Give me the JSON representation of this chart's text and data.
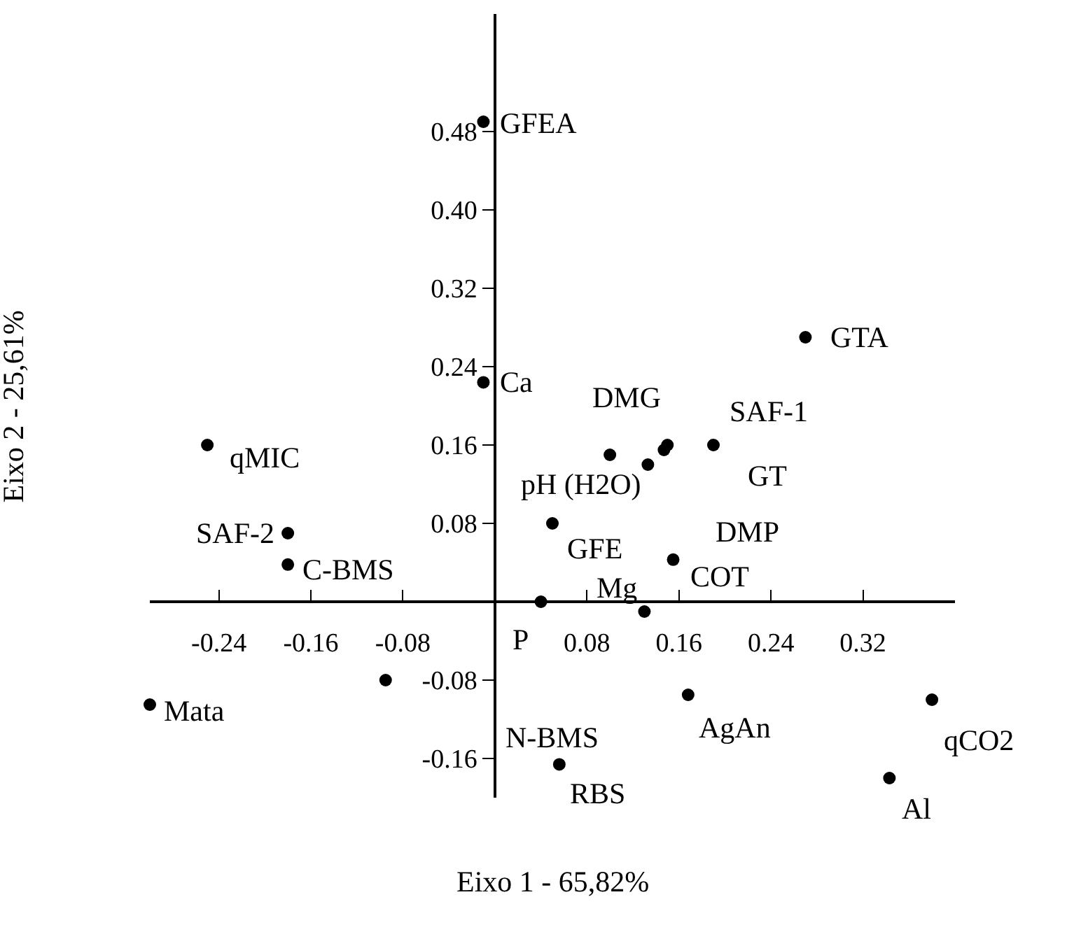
{
  "chart_data": {
    "type": "scatter",
    "xlabel": "Eixo 1 - 65,82%",
    "ylabel": "Eixo 2 - 25,61%",
    "x": [
      -0.01,
      -0.01,
      -0.25,
      0.27,
      0.19,
      0.15,
      0.147,
      0.1,
      0.133,
      0.05,
      0.155,
      0.04,
      0.13,
      -0.18,
      -0.18,
      -0.095,
      -0.3,
      0.056,
      0.168,
      0.38,
      0.343
    ],
    "series": [
      {
        "color": "#000000",
        "values": [
          0.49,
          0.224,
          0.16,
          0.27,
          0.16,
          0.16,
          0.155,
          0.15,
          0.14,
          0.08,
          0.043,
          0.0,
          -0.01,
          0.07,
          0.038,
          -0.08,
          -0.105,
          -0.166,
          -0.095,
          -0.1,
          -0.18
        ]
      }
    ],
    "marker": "circle",
    "grid": false,
    "xlim": [
      -0.3,
      0.4
    ],
    "ylim": [
      -0.2,
      0.6
    ],
    "xticks": [
      -0.24,
      -0.16,
      -0.08,
      0.08,
      0.16,
      0.24,
      0.32
    ],
    "yticks": [
      -0.16,
      -0.08,
      0.08,
      0.16,
      0.24,
      0.32,
      {
        "value": 0.4,
        "label": "0.40"
      },
      0.48
    ],
    "annotations": [
      {
        "text": "GFEA",
        "x": -0.01,
        "y": 0.49
      },
      {
        "text": "Ca",
        "x": -0.01,
        "y": 0.224
      },
      {
        "text": "qMIC",
        "x": -0.25,
        "y": 0.16
      },
      {
        "text": "GTA",
        "x": 0.27,
        "y": 0.27
      },
      {
        "text": "DMG",
        "x": 0.15,
        "y": 0.16
      },
      {
        "text": "SAF-1",
        "x": 0.19,
        "y": 0.16
      },
      {
        "text": "GT",
        "x": 0.19,
        "y": 0.16
      },
      {
        "text": "pH (H2O)",
        "x": 0.1,
        "y": 0.15
      },
      {
        "text": "DMP",
        "x": 0.133,
        "y": 0.14
      },
      {
        "text": "GFE",
        "x": 0.05,
        "y": 0.08
      },
      {
        "text": "COT",
        "x": 0.155,
        "y": 0.043
      },
      {
        "text": "Mg",
        "x": 0.13,
        "y": -0.01
      },
      {
        "text": "P",
        "x": 0.04,
        "y": 0.0
      },
      {
        "text": "SAF-2",
        "x": -0.18,
        "y": 0.07
      },
      {
        "text": "C-BMS",
        "x": -0.18,
        "y": 0.038
      },
      {
        "text": "Mata",
        "x": -0.3,
        "y": -0.105
      },
      {
        "text": "N-BMS",
        "x": 0.056,
        "y": -0.166
      },
      {
        "text": "RBS",
        "x": 0.056,
        "y": -0.166
      },
      {
        "text": "AgAn",
        "x": 0.168,
        "y": -0.095
      },
      {
        "text": "qCO2",
        "x": 0.38,
        "y": -0.1
      },
      {
        "text": "Al",
        "x": 0.343,
        "y": -0.18
      }
    ]
  }
}
